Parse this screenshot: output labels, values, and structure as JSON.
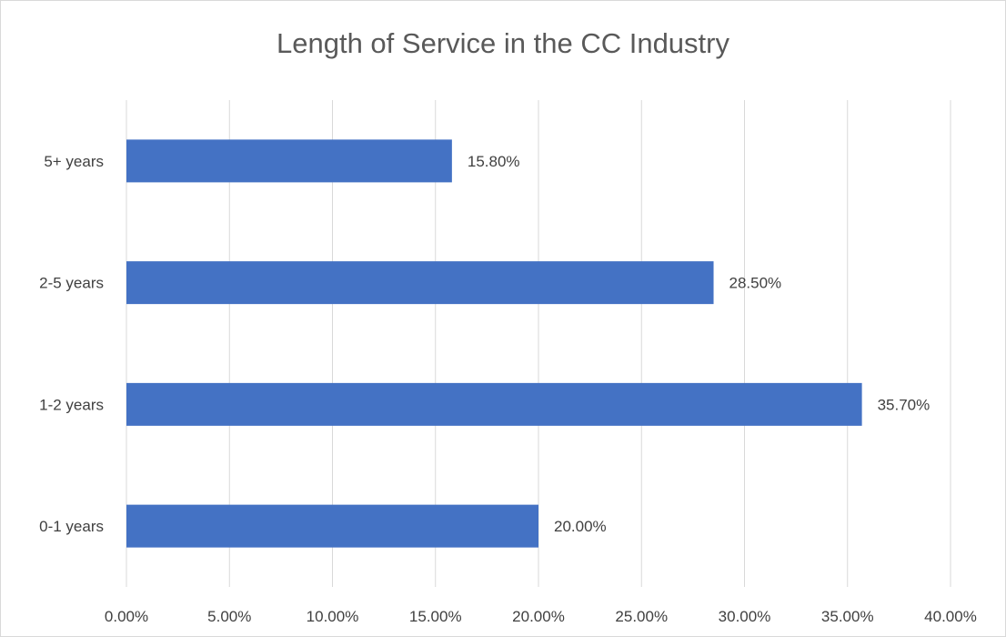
{
  "chart_data": {
    "type": "bar",
    "orientation": "horizontal",
    "title": "Length of Service in the CC Industry",
    "categories": [
      "0-1 years",
      "1-2 years",
      "2-5 years",
      "5+ years"
    ],
    "values": [
      20.0,
      35.7,
      28.5,
      15.8
    ],
    "data_labels": [
      "20.00%",
      "35.70%",
      "28.50%",
      "15.80%"
    ],
    "xlim": [
      0,
      40
    ],
    "x_ticks": [
      0,
      5,
      10,
      15,
      20,
      25,
      30,
      35,
      40
    ],
    "x_tick_labels": [
      "0.00%",
      "5.00%",
      "10.00%",
      "15.00%",
      "20.00%",
      "25.00%",
      "30.00%",
      "35.00%",
      "40.00%"
    ],
    "xlabel": "",
    "ylabel": "",
    "grid": "vertical",
    "legend": "none",
    "bar_color": "#4472C4",
    "gridline_color": "#d9d9d9"
  }
}
